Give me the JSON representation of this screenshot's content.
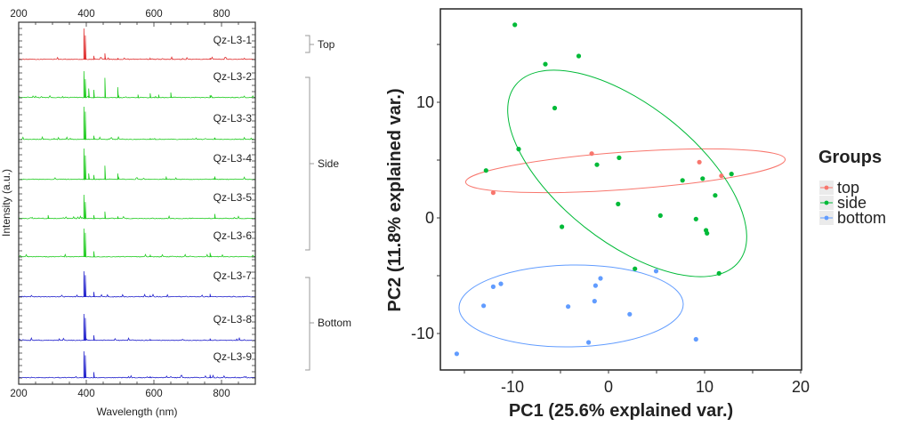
{
  "chart_data": [
    {
      "type": "line",
      "title": "",
      "xlabel": "Wavelength (nm)",
      "ylabel": "Intensity (a.u.)",
      "xlim": [
        200,
        900
      ],
      "xticks": [
        "200",
        "400",
        "600",
        "800"
      ],
      "layout": "stacked spectra, top and bottom x axes",
      "series": [
        {
          "name": "Qz-L3-1",
          "group": "Top",
          "color": "#e03030",
          "peaks": [
            [
              393,
              1.0
            ],
            [
              397,
              0.78
            ],
            [
              422,
              0.12
            ],
            [
              455,
              0.2
            ],
            [
              493,
              0.05
            ],
            [
              589,
              0.04
            ],
            [
              766,
              0.05
            ]
          ]
        },
        {
          "name": "Qz-L3-2",
          "group": "Side",
          "color": "#22cc22",
          "peaks": [
            [
              393,
              1.0
            ],
            [
              397,
              0.7
            ],
            [
              407,
              0.35
            ],
            [
              422,
              0.3
            ],
            [
              455,
              0.75
            ],
            [
              493,
              0.4
            ],
            [
              553,
              0.12
            ],
            [
              589,
              0.17
            ],
            [
              614,
              0.12
            ],
            [
              650,
              0.2
            ],
            [
              766,
              0.1
            ]
          ]
        },
        {
          "name": "Qz-L3-3",
          "group": "Side",
          "color": "#22cc22",
          "peaks": [
            [
              393,
              1.0
            ],
            [
              397,
              0.85
            ],
            [
              422,
              0.12
            ],
            [
              589,
              0.04
            ],
            [
              780,
              0.06
            ]
          ]
        },
        {
          "name": "Qz-L3-4",
          "group": "Side",
          "color": "#22cc22",
          "peaks": [
            [
              393,
              1.0
            ],
            [
              397,
              0.78
            ],
            [
              407,
              0.2
            ],
            [
              422,
              0.15
            ],
            [
              455,
              0.45
            ],
            [
              493,
              0.2
            ],
            [
              636,
              0.1
            ],
            [
              780,
              0.1
            ]
          ]
        },
        {
          "name": "Qz-L3-5",
          "group": "Side",
          "color": "#22cc22",
          "peaks": [
            [
              393,
              1.0
            ],
            [
              397,
              0.7
            ],
            [
              422,
              0.15
            ],
            [
              455,
              0.3
            ],
            [
              493,
              0.1
            ],
            [
              780,
              0.2
            ],
            [
              287,
              0.15
            ]
          ]
        },
        {
          "name": "Qz-L3-6",
          "group": "Side",
          "color": "#22cc22",
          "peaks": [
            [
              393,
              1.0
            ],
            [
              397,
              0.85
            ],
            [
              422,
              0.2
            ],
            [
              589,
              0.08
            ],
            [
              766,
              0.15
            ]
          ]
        },
        {
          "name": "Qz-L3-7",
          "group": "Bottom",
          "color": "#2222cc",
          "peaks": [
            [
              393,
              1.0
            ],
            [
              397,
              0.85
            ],
            [
              422,
              0.2
            ],
            [
              589,
              0.05
            ],
            [
              766,
              0.12
            ]
          ]
        },
        {
          "name": "Qz-L3-8",
          "group": "Bottom",
          "color": "#2222cc",
          "peaks": [
            [
              393,
              1.0
            ],
            [
              397,
              0.85
            ],
            [
              422,
              0.2
            ],
            [
              589,
              0.04
            ],
            [
              766,
              0.08
            ]
          ]
        },
        {
          "name": "Qz-L3-9",
          "group": "Bottom",
          "color": "#2222cc",
          "peaks": [
            [
              393,
              1.0
            ],
            [
              397,
              0.85
            ],
            [
              422,
              0.22
            ],
            [
              589,
              0.06
            ],
            [
              766,
              0.12
            ]
          ]
        }
      ],
      "groups": [
        "Top",
        "Side",
        "Bottom"
      ]
    },
    {
      "type": "scatter",
      "title": "",
      "xlabel": "PC1 (25.6% explained var.)",
      "ylabel": "PC2 (11.8% explained var.)",
      "xlim": [
        -17.5,
        20.1
      ],
      "ylim": [
        -13.2,
        18.1
      ],
      "xticks": [
        "-10",
        "0",
        "10",
        "20"
      ],
      "yticks": [
        "10",
        "0",
        "-10"
      ],
      "grid": false,
      "legend": {
        "title": "Groups",
        "position": "right"
      },
      "ellipses": true,
      "series": [
        {
          "name": "top",
          "color": "#f8766d",
          "points": [
            [
              -1.75,
              5.56
            ],
            [
              9.45,
              4.82
            ],
            [
              11.75,
              3.64
            ],
            [
              -12.0,
              2.18
            ]
          ]
        },
        {
          "name": "side",
          "color": "#00ba38",
          "points": [
            [
              -9.75,
              16.7
            ],
            [
              -6.57,
              13.3
            ],
            [
              -3.1,
              14.0
            ],
            [
              -5.6,
              9.5
            ],
            [
              -9.35,
              5.95
            ],
            [
              -12.75,
              4.1
            ],
            [
              -1.2,
              4.6
            ],
            [
              1.1,
              5.2
            ],
            [
              7.7,
              3.25
            ],
            [
              9.8,
              3.4
            ],
            [
              12.8,
              3.8
            ],
            [
              11.1,
              1.95
            ],
            [
              1.0,
              1.2
            ],
            [
              5.4,
              0.2
            ],
            [
              9.1,
              -0.1
            ],
            [
              10.15,
              -1.08
            ],
            [
              10.25,
              -1.33
            ],
            [
              -4.85,
              -0.77
            ],
            [
              2.75,
              -4.4
            ],
            [
              11.5,
              -4.8
            ]
          ]
        },
        {
          "name": "bottom",
          "color": "#619cff",
          "points": [
            [
              4.95,
              -4.6
            ],
            [
              -0.83,
              -5.23
            ],
            [
              -1.35,
              -5.85
            ],
            [
              -11.2,
              -5.7
            ],
            [
              -12.0,
              -5.95
            ],
            [
              -13.0,
              -7.6
            ],
            [
              -4.2,
              -7.67
            ],
            [
              -1.45,
              -7.2
            ],
            [
              2.2,
              -8.33
            ],
            [
              -2.07,
              -10.77
            ],
            [
              9.1,
              -10.5
            ],
            [
              -15.8,
              -11.75
            ]
          ]
        }
      ]
    }
  ]
}
